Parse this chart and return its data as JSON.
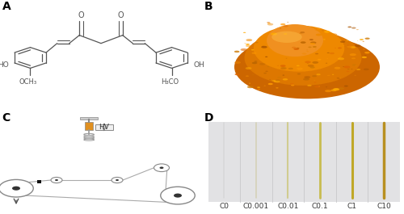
{
  "panel_labels": [
    "A",
    "B",
    "C",
    "D"
  ],
  "panel_label_fontsize": 10,
  "panel_label_weight": "bold",
  "background_color": "#ffffff",
  "filament_labels": [
    "C0",
    "C0.001",
    "C0.01",
    "C0.1",
    "C1",
    "C10"
  ],
  "filament_bg": "#e8e8e8",
  "label_fontsize": 6.5,
  "mol_color": "#555555",
  "wire_color": "#aaaaaa",
  "roller_color": "#888888",
  "coil_color": "#999999",
  "arrow_color": "#555555",
  "syringe_body_color": "#d8900a",
  "syringe_plunger_color": "#bbbbbb",
  "hv_box_color": "#f0f0f0",
  "hv_text_color": "#333333"
}
